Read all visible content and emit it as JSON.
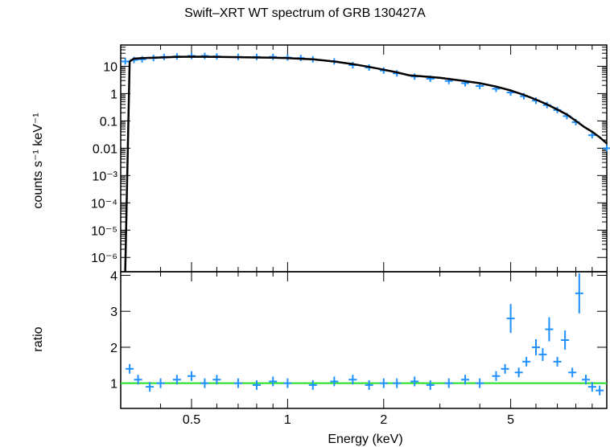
{
  "chart_data": [
    {
      "panel": "spectrum",
      "type": "scatter",
      "title": "Swift–XRT WT spectrum of GRB 130427A",
      "ylabel": "counts s⁻¹ keV⁻¹",
      "xlabel": "",
      "xscale": "log",
      "yscale": "log",
      "xlim": [
        0.3,
        10
      ],
      "ylim": [
        3e-07,
        60
      ],
      "y_tick_values": [
        1e-06,
        1e-05,
        0.0001,
        0.001,
        0.01,
        0.1,
        1,
        10
      ],
      "y_tick_labels": [
        "10⁻⁶",
        "10⁻⁵",
        "10⁻⁴",
        "10⁻³",
        "0.01",
        "0.1",
        "1",
        "10"
      ],
      "series": [
        {
          "role": "data",
          "color": "#1e90ff",
          "x": [
            0.31,
            0.33,
            0.35,
            0.38,
            0.41,
            0.45,
            0.5,
            0.55,
            0.6,
            0.7,
            0.8,
            0.9,
            1.0,
            1.1,
            1.2,
            1.4,
            1.6,
            1.8,
            2.0,
            2.2,
            2.5,
            2.8,
            3.2,
            3.6,
            4.0,
            4.5,
            5.0,
            5.5,
            6.0,
            6.5,
            7.0,
            7.5,
            8.0,
            9.0,
            10.0
          ],
          "y": [
            15,
            17,
            18,
            20,
            22,
            23,
            24,
            24,
            23,
            22,
            22,
            22,
            21,
            20,
            18,
            15,
            11,
            9,
            7,
            5.5,
            4.2,
            3.5,
            2.9,
            2.4,
            1.9,
            1.5,
            1.1,
            0.8,
            0.55,
            0.38,
            0.25,
            0.15,
            0.09,
            0.03,
            0.01
          ]
        },
        {
          "role": "model",
          "color": "#000000",
          "x": [
            0.31,
            0.32,
            0.33,
            0.35,
            0.4,
            0.45,
            0.5,
            0.6,
            0.7,
            0.8,
            0.9,
            1.0,
            1.2,
            1.4,
            1.6,
            1.8,
            2.0,
            2.2,
            2.4,
            2.7,
            3.0,
            3.5,
            4.0,
            4.5,
            5.0,
            5.5,
            6.0,
            6.5,
            7.0,
            7.5,
            8.0,
            8.5,
            9.0,
            9.5,
            10.0
          ],
          "y": [
            3e-07,
            15,
            19,
            20,
            21,
            22,
            22.5,
            22,
            21.5,
            21,
            20.5,
            20,
            18,
            15,
            12,
            9.5,
            7.5,
            6,
            4.7,
            4.2,
            3.8,
            3.0,
            2.4,
            1.8,
            1.3,
            0.9,
            0.6,
            0.4,
            0.26,
            0.17,
            0.1,
            0.06,
            0.04,
            0.025,
            0.015
          ]
        }
      ]
    },
    {
      "panel": "ratio",
      "type": "scatter",
      "xlabel": "Energy (keV)",
      "ylabel": "ratio",
      "xscale": "log",
      "xlim": [
        0.3,
        10
      ],
      "ylim": [
        0.3,
        4.1
      ],
      "x_tick_values": [
        0.5,
        1,
        2,
        5
      ],
      "x_tick_labels": [
        "0.5",
        "1",
        "2",
        "5"
      ],
      "y_tick_values": [
        1,
        2,
        3,
        4
      ],
      "y_tick_labels": [
        "1",
        "2",
        "3",
        "4"
      ],
      "reference_line": {
        "y": 1,
        "color": "#22dd22"
      },
      "series": [
        {
          "role": "data",
          "color": "#1e90ff",
          "x": [
            0.32,
            0.34,
            0.37,
            0.4,
            0.45,
            0.5,
            0.55,
            0.6,
            0.7,
            0.8,
            0.9,
            1.0,
            1.2,
            1.4,
            1.6,
            1.8,
            2.0,
            2.2,
            2.5,
            2.8,
            3.2,
            3.6,
            4.0,
            4.5,
            4.8,
            5.0,
            5.3,
            5.6,
            6.0,
            6.3,
            6.6,
            7.0,
            7.4,
            7.8,
            8.2,
            8.6,
            9.0,
            9.5
          ],
          "y": [
            1.4,
            1.1,
            0.9,
            1.0,
            1.1,
            1.2,
            1.0,
            1.1,
            1.0,
            0.95,
            1.05,
            1.0,
            0.95,
            1.05,
            1.1,
            0.95,
            1.0,
            1.0,
            1.05,
            0.95,
            1.0,
            1.1,
            1.0,
            1.2,
            1.4,
            2.8,
            1.3,
            1.6,
            2.0,
            1.8,
            2.5,
            1.6,
            2.2,
            1.3,
            3.5,
            1.1,
            0.9,
            0.8
          ]
        }
      ]
    }
  ]
}
